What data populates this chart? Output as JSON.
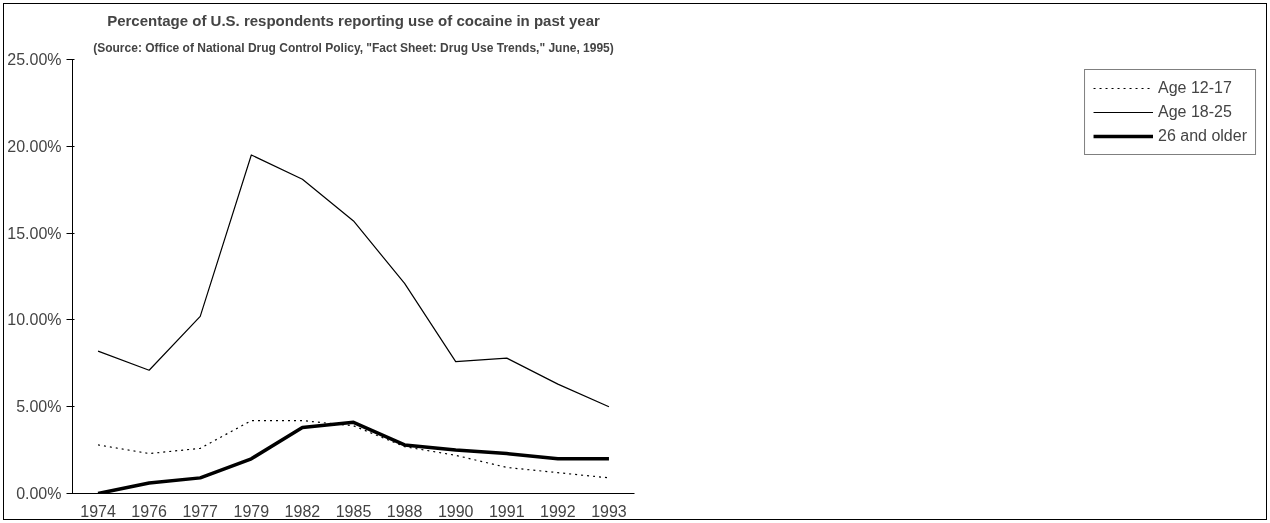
{
  "chart_data": {
    "type": "line",
    "title": "Percentage of U.S. respondents reporting use of cocaine in past year",
    "subtitle": "(Source: Office of National Drug Control Policy, \"Fact Sheet: Drug Use Trends,\" June, 1995)",
    "categories": [
      "1974",
      "1976",
      "1977",
      "1979",
      "1982",
      "1985",
      "1988",
      "1990",
      "1991",
      "1992",
      "1993"
    ],
    "series": [
      {
        "name": "Age 12-17",
        "color": "#000000",
        "line_style": "dotted",
        "values": [
          2.8,
          2.3,
          2.6,
          4.2,
          4.2,
          3.9,
          2.7,
          2.2,
          1.5,
          1.2,
          0.9
        ]
      },
      {
        "name": "Age 18-25",
        "color": "#000000",
        "line_style": "solid",
        "values": [
          8.2,
          7.1,
          10.2,
          19.5,
          18.1,
          15.7,
          12.1,
          7.6,
          7.8,
          6.3,
          5.0
        ]
      },
      {
        "name": "26 and older",
        "color": "#000000",
        "line_style": "solid",
        "values": [
          0.0,
          0.6,
          0.9,
          2.0,
          3.8,
          4.1,
          2.8,
          2.5,
          2.3,
          2.0,
          2.0
        ]
      }
    ],
    "ylim": [
      0,
      25
    ],
    "yticks": [
      {
        "value": 0,
        "label": "0.00%"
      },
      {
        "value": 5,
        "label": "5.00%"
      },
      {
        "value": 10,
        "label": "10.00%"
      },
      {
        "value": 15,
        "label": "15.00%"
      },
      {
        "value": 20,
        "label": "20.00%"
      },
      {
        "value": 25,
        "label": "25.00%"
      }
    ],
    "grid": false,
    "legend": "right",
    "marker": "none"
  }
}
